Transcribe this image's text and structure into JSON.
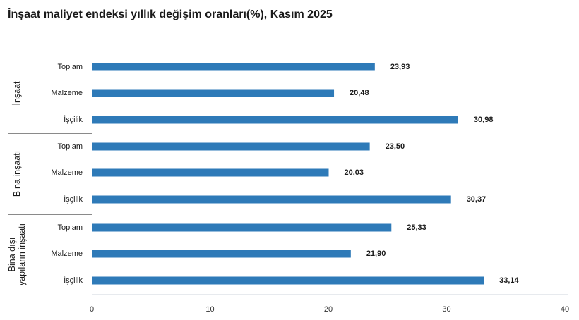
{
  "chart_data": {
    "type": "bar",
    "orientation": "horizontal",
    "title": "İnşaat maliyet endeksi yıllık değişim oranları(%), Kasım 2025",
    "xlim": [
      0,
      40
    ],
    "x_ticks": [
      "0",
      "10",
      "20",
      "30",
      "40"
    ],
    "groups": [
      {
        "label": [
          "İnşaat"
        ],
        "categories": [
          "Toplam",
          "Malzeme",
          "İşçilik"
        ],
        "values": [
          23.93,
          20.48,
          30.98
        ],
        "value_labels": [
          "23,93",
          "20,48",
          "30,98"
        ]
      },
      {
        "label": [
          "Bina inşaatı"
        ],
        "categories": [
          "Toplam",
          "Malzeme",
          "İşçilik"
        ],
        "values": [
          23.5,
          20.03,
          30.37
        ],
        "value_labels": [
          "23,50",
          "20,03",
          "30,37"
        ]
      },
      {
        "label": [
          "Bina dışı",
          "yapıların inşaatı"
        ],
        "categories": [
          "Toplam",
          "Malzeme",
          "İşçilik"
        ],
        "values": [
          25.33,
          21.9,
          33.14
        ],
        "value_labels": [
          "25,33",
          "21,90",
          "33,14"
        ]
      }
    ],
    "bar_color": "#2e7ab8",
    "grid": false,
    "legend": "none"
  }
}
